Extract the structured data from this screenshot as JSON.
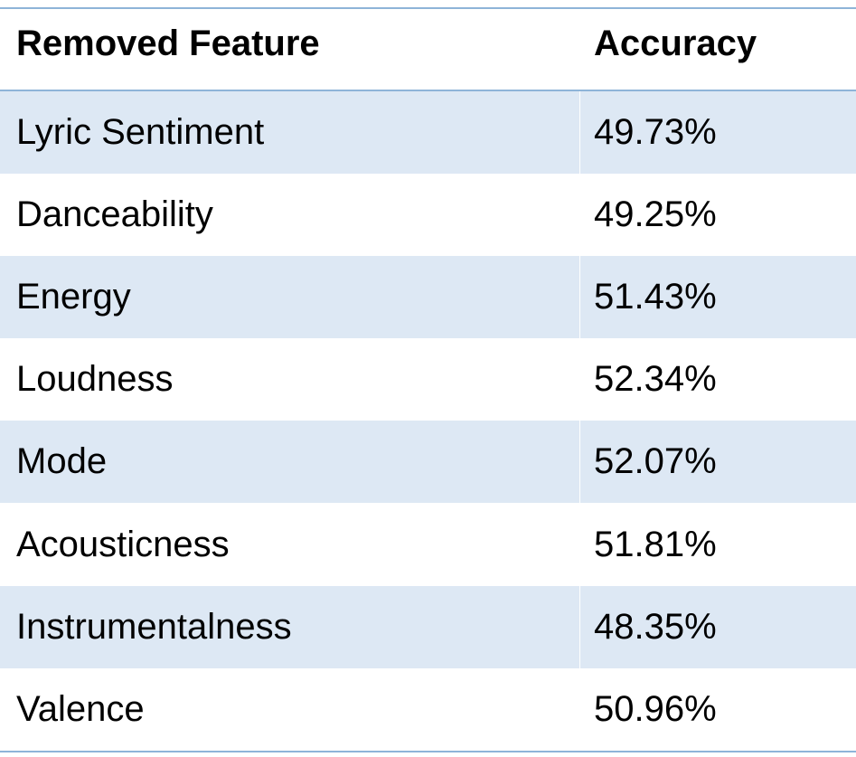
{
  "table": {
    "headers": {
      "feature": "Removed Feature",
      "accuracy": "Accuracy"
    },
    "rows": [
      {
        "feature": "Lyric Sentiment",
        "accuracy": "49.73%"
      },
      {
        "feature": "Danceability",
        "accuracy": "49.25%"
      },
      {
        "feature": "Energy",
        "accuracy": "51.43%"
      },
      {
        "feature": "Loudness",
        "accuracy": "52.34%"
      },
      {
        "feature": "Mode",
        "accuracy": "52.07%"
      },
      {
        "feature": "Acousticness",
        "accuracy": "51.81%"
      },
      {
        "feature": "Instrumentalness",
        "accuracy": "48.35%"
      },
      {
        "feature": "Valence",
        "accuracy": "50.96%"
      }
    ]
  },
  "colors": {
    "rule": "#8eb4d8",
    "band": "#dde8f4",
    "text": "#000000"
  }
}
